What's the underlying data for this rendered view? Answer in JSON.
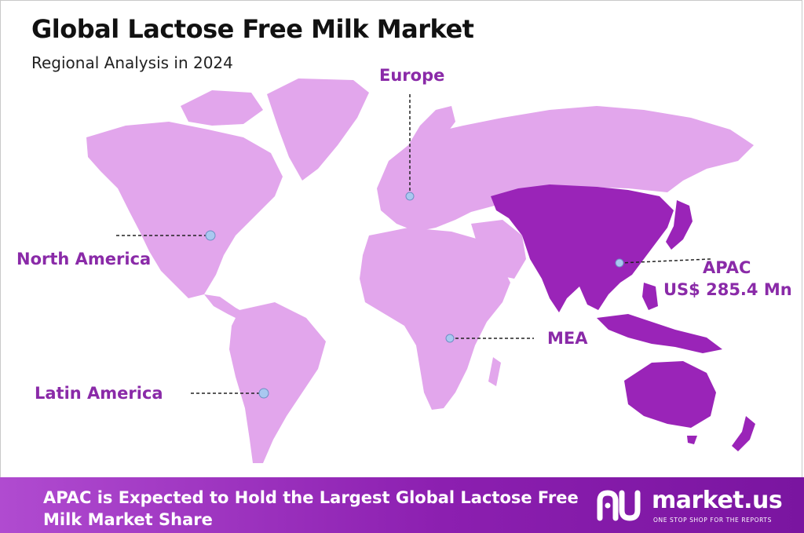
{
  "header": {
    "title": "Global Lactose Free Milk Market",
    "subtitle": "Regional Analysis in 2024"
  },
  "regions": {
    "europe": {
      "label": "Europe"
    },
    "north_america": {
      "label": "North America"
    },
    "latin_america": {
      "label": "Latin America"
    },
    "mea": {
      "label": "MEA"
    },
    "apac": {
      "label": "APAC",
      "value": "US$ 285.4 Mn",
      "highlighted": true
    }
  },
  "footer": {
    "headline_line1": "APAC is Expected to Hold the Largest Global Lactose Free",
    "headline_line2": "Milk Market Share"
  },
  "brand": {
    "name": "market.us",
    "tagline": "ONE STOP SHOP FOR THE REPORTS"
  },
  "colors": {
    "land": "#e2a6ec",
    "land_highlight": "#9a24b8",
    "label": "#8a2aa8",
    "marker": "#a9c8f0",
    "footer_start": "#b04bd0",
    "footer_end": "#7a15a0"
  }
}
